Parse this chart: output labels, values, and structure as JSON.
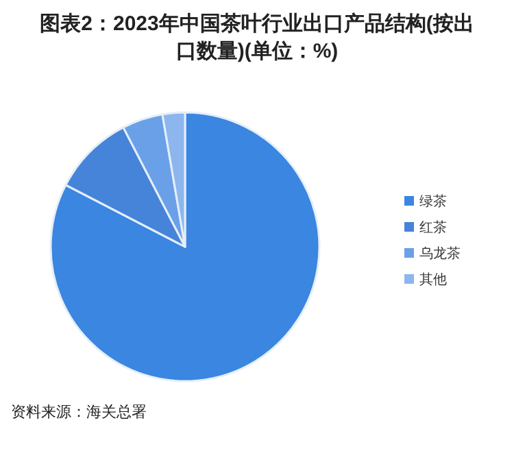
{
  "chart_data": {
    "type": "pie",
    "title": "图表2：2023年中国茶叶行业出口产品结构(按出口数量)(单位：%)",
    "categories": [
      "绿茶",
      "红茶",
      "乌龙茶",
      "其他"
    ],
    "values": [
      82.6,
      9.8,
      4.9,
      2.7
    ],
    "colors": [
      "#3a86e0",
      "#4584d8",
      "#6aa0e8",
      "#8db6ee"
    ],
    "legend": "right",
    "annotations": [
      "资料来源：海关总署"
    ]
  }
}
